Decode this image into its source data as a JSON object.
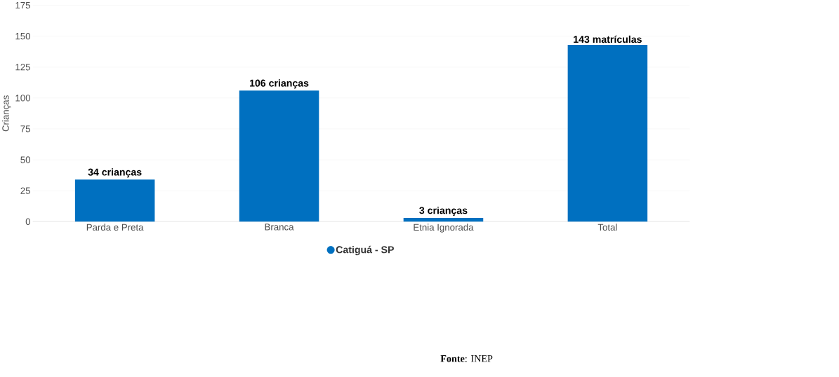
{
  "chart_data": {
    "type": "bar",
    "ylabel": "Crianças",
    "categories": [
      "Parda e Preta",
      "Branca",
      "Etnia Ignorada",
      "Total"
    ],
    "series": [
      {
        "name": "Catiguá - SP",
        "color": "#0070c0",
        "values": [
          34,
          106,
          3,
          143
        ],
        "value_labels": [
          "34 crianças",
          "106 crianças",
          "3 crianças",
          "143 matrículas"
        ]
      }
    ],
    "ylim": [
      0,
      175
    ],
    "yticks": [
      0,
      25,
      50,
      75,
      100,
      125,
      150,
      175
    ],
    "grid": "y",
    "legend": "bottom",
    "annotations": [
      "**Fonte**: INEP"
    ]
  }
}
